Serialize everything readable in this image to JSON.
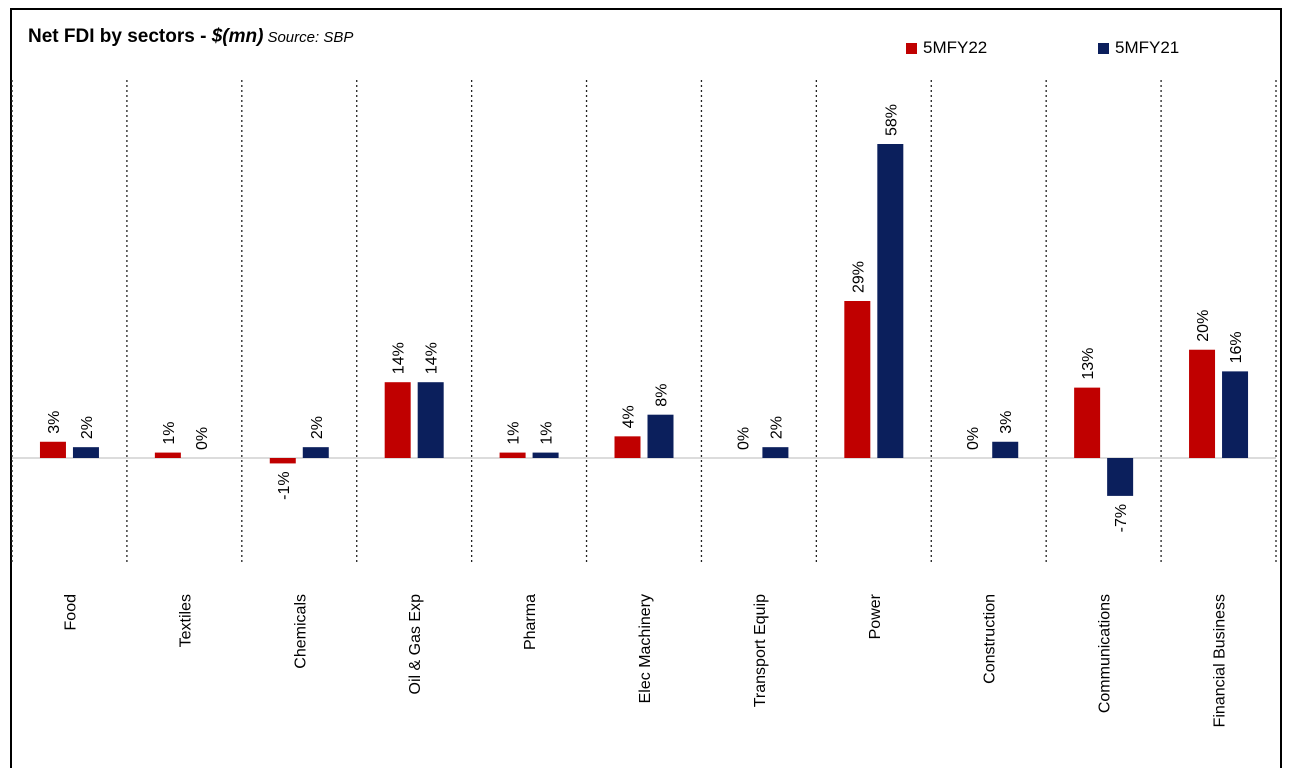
{
  "title": {
    "main": "Net FDI by sectors - ",
    "unit": "$(mn)",
    "source": "Source: SBP"
  },
  "colors": {
    "5MFY22": "#c00000",
    "5MFY21": "#0b1f5c"
  },
  "chart_data": {
    "type": "bar",
    "categories": [
      "Food",
      "Textiles",
      "Chemicals",
      "Oil & Gas Exp",
      "Pharma",
      "Elec Machinery",
      "Transport Equip",
      "Power",
      "Construction",
      "Communications",
      "Financial Business"
    ],
    "series": [
      {
        "name": "5MFY22",
        "values": [
          3,
          1,
          -1,
          14,
          1,
          4,
          0,
          29,
          0,
          13,
          20
        ],
        "labels": [
          "3%",
          "1%",
          "-1%",
          "14%",
          "1%",
          "4%",
          "0%",
          "29%",
          "0%",
          "13%",
          "20%"
        ]
      },
      {
        "name": "5MFY21",
        "values": [
          2,
          0,
          2,
          14,
          1,
          8,
          2,
          58,
          3,
          -7,
          16
        ],
        "labels": [
          "2%",
          "0%",
          "2%",
          "14%",
          "1%",
          "8%",
          "2%",
          "58%",
          "3%",
          "-7%",
          "16%"
        ]
      }
    ],
    "grid": false,
    "legend_position": "top-right"
  }
}
